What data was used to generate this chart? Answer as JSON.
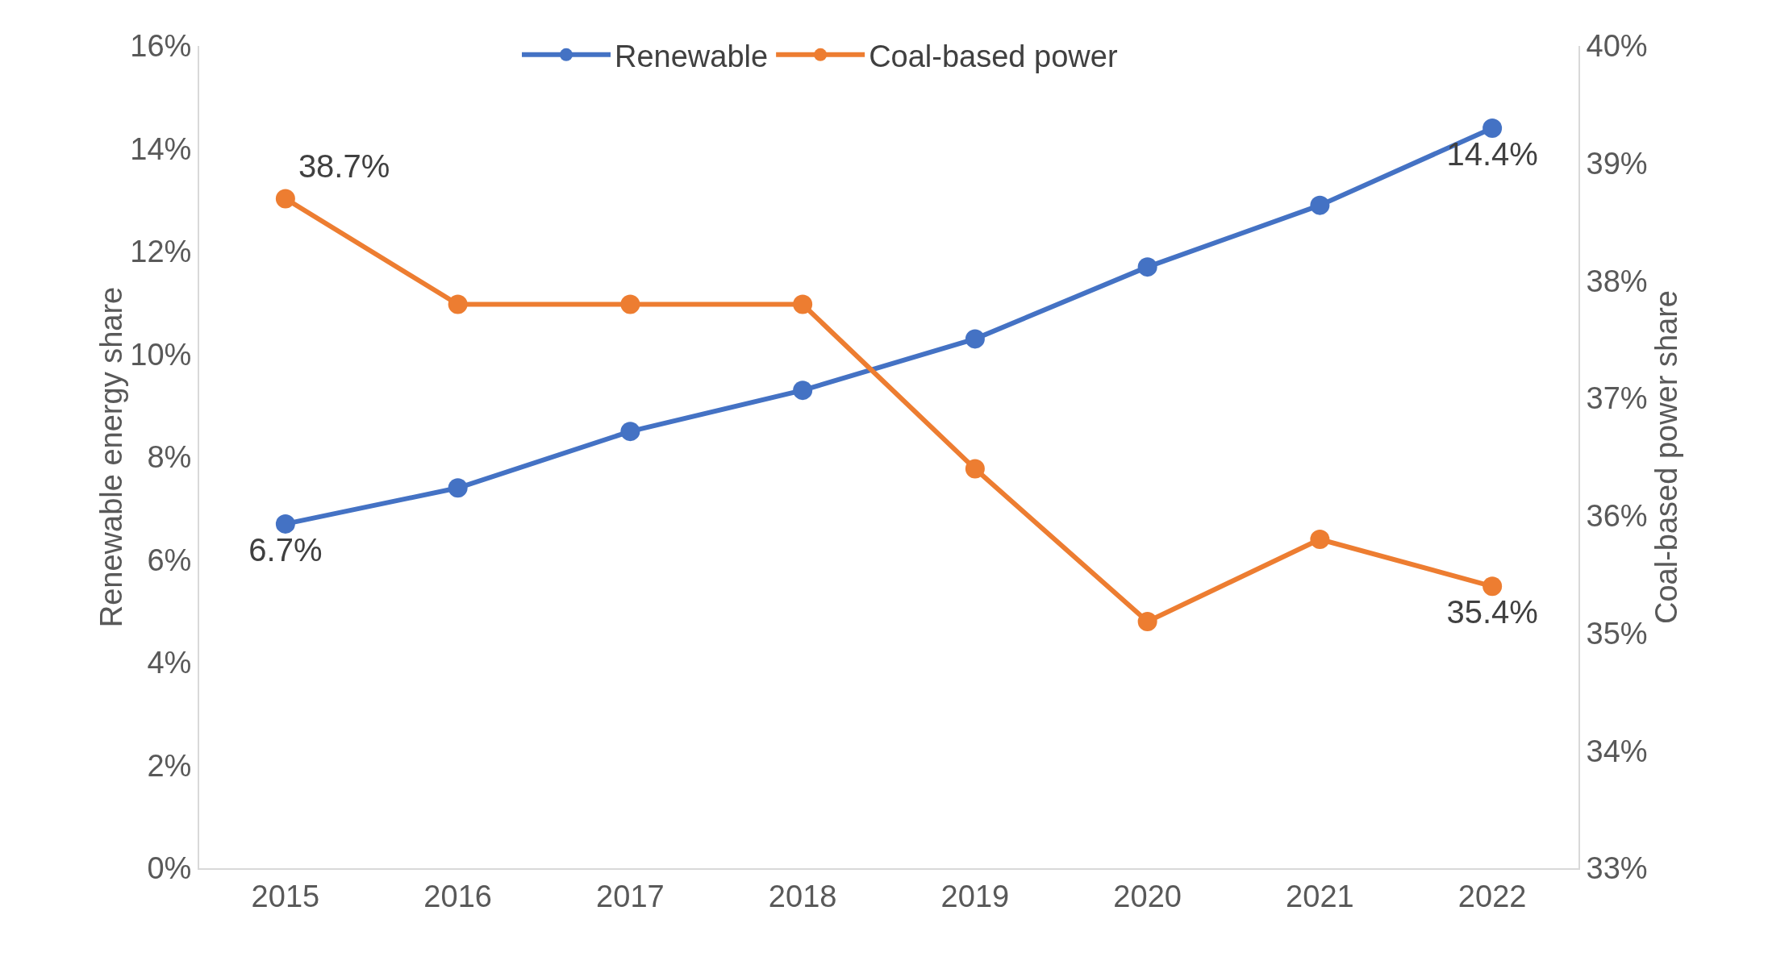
{
  "chart_data": {
    "type": "line",
    "categories": [
      "2015",
      "2016",
      "2017",
      "2018",
      "2019",
      "2020",
      "2021",
      "2022"
    ],
    "ylabel": "Renewable energy share",
    "y2label": "Coal-based power share",
    "series": [
      {
        "name": "Renewable",
        "color": "#4472c4",
        "values": [
          6.7,
          7.4,
          8.5,
          9.3,
          10.3,
          11.7,
          12.9,
          14.4
        ],
        "value_labels": [
          "6.7%",
          null,
          null,
          null,
          null,
          null,
          null,
          "14.4%"
        ]
      },
      {
        "name": "Coal-based power",
        "color": "#ed7d31",
        "axis": "y2",
        "values": [
          38.7,
          37.8,
          37.8,
          37.8,
          36.4,
          35.1,
          35.8,
          35.4
        ],
        "value_labels": [
          "38.7%",
          null,
          null,
          null,
          null,
          null,
          null,
          "35.4%"
        ]
      }
    ],
    "ylim": [
      0,
      16
    ],
    "yticks": [
      {
        "value": 0,
        "label": "0%"
      },
      {
        "value": 2,
        "label": "2%"
      },
      {
        "value": 4,
        "label": "4%"
      },
      {
        "value": 6,
        "label": "6%"
      },
      {
        "value": 8,
        "label": "8%"
      },
      {
        "value": 10,
        "label": "10%"
      },
      {
        "value": 12,
        "label": "12%"
      },
      {
        "value": 14,
        "label": "14%"
      },
      {
        "value": 16,
        "label": "16%"
      }
    ],
    "y2lim": [
      33,
      40
    ],
    "y2ticks": [
      {
        "value": 33,
        "label": "33%"
      },
      {
        "value": 34,
        "label": "34%"
      },
      {
        "value": 35,
        "label": "35%"
      },
      {
        "value": 36,
        "label": "36%"
      },
      {
        "value": 37,
        "label": "37%"
      },
      {
        "value": 38,
        "label": "38%"
      },
      {
        "value": 39,
        "label": "39%"
      },
      {
        "value": 40,
        "label": "40%"
      }
    ],
    "grid": false,
    "legend": "top",
    "marker": "circle",
    "line_style": "solid"
  }
}
